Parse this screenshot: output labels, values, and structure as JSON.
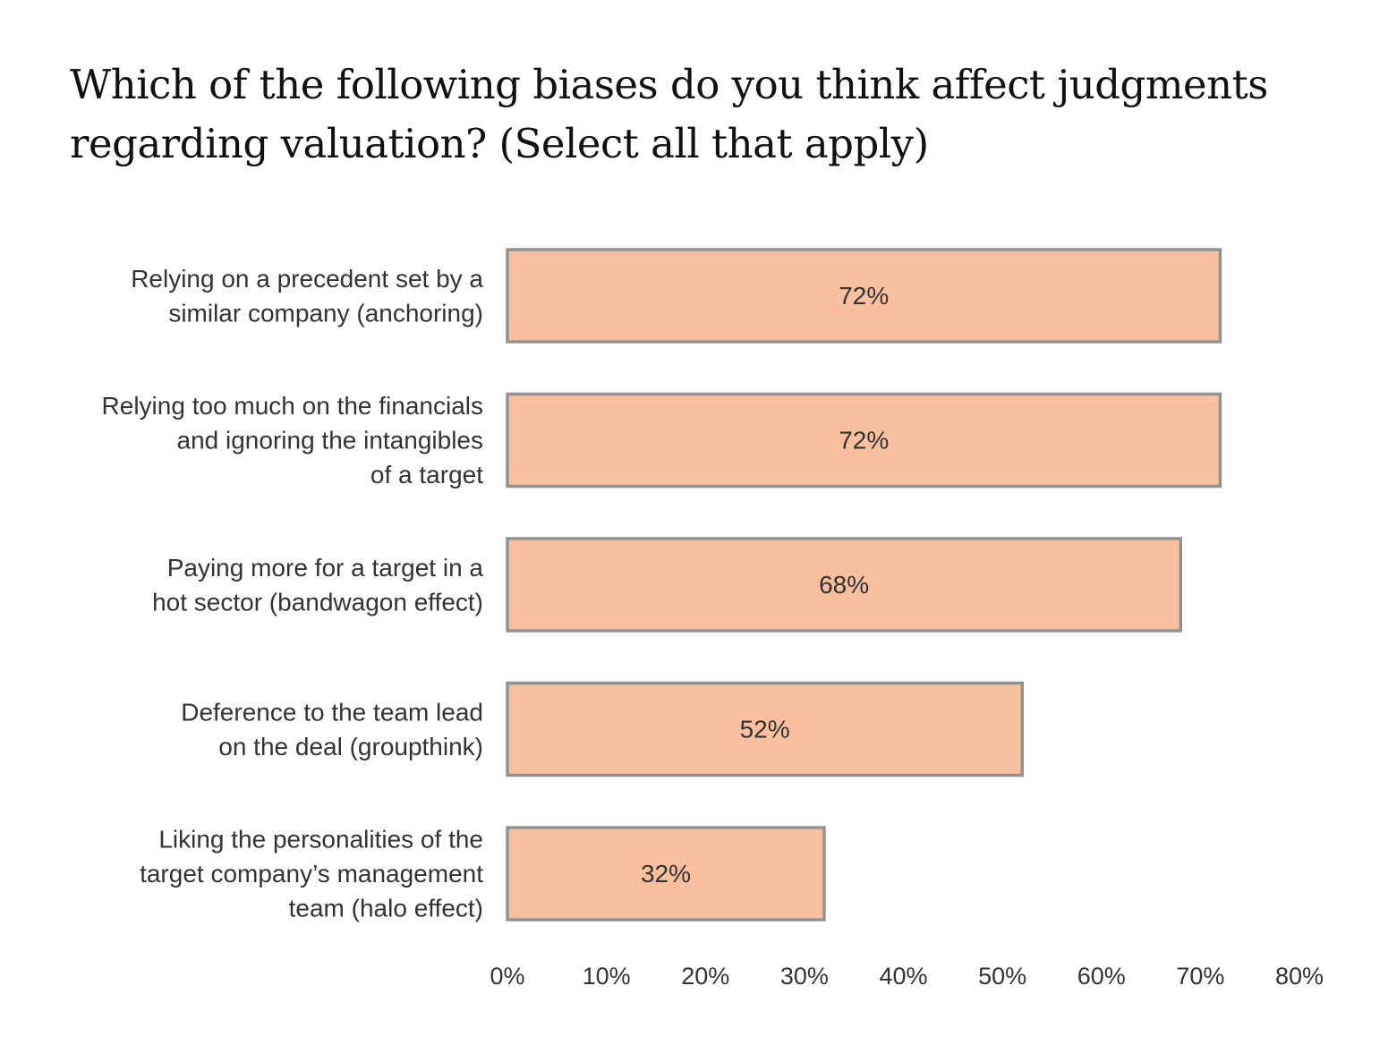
{
  "chart_data": {
    "type": "bar",
    "orientation": "horizontal",
    "title": "Which of the following biases do you think affect judgments regarding valuation? (Select all that apply)",
    "categories": [
      [
        "Relying on a precedent set by a",
        "similar company (anchoring)"
      ],
      [
        "Relying too much on the financials",
        "and ignoring the intangibles",
        "of a target"
      ],
      [
        "Paying more for a target in a",
        "hot sector (bandwagon effect)"
      ],
      [
        "Deference to the team lead",
        "on the deal (groupthink)"
      ],
      [
        "Liking the personalities of the",
        "target company’s management",
        "team (halo effect)"
      ]
    ],
    "values": [
      72,
      72,
      68,
      52,
      32
    ],
    "value_labels": [
      "72%",
      "72%",
      "68%",
      "52%",
      "32%"
    ],
    "xlim": [
      0,
      80
    ],
    "xticks": [
      0,
      10,
      20,
      30,
      40,
      50,
      60,
      70,
      80
    ],
    "xtick_labels": [
      "0%",
      "10%",
      "20%",
      "30%",
      "40%",
      "50%",
      "60%",
      "70%",
      "80%"
    ],
    "xlabel": "",
    "ylabel": "",
    "grid": false,
    "legend": "none",
    "colors": {
      "bar_fill": "#f9c09f",
      "bar_stroke": "#929292",
      "text": "#333333"
    }
  }
}
